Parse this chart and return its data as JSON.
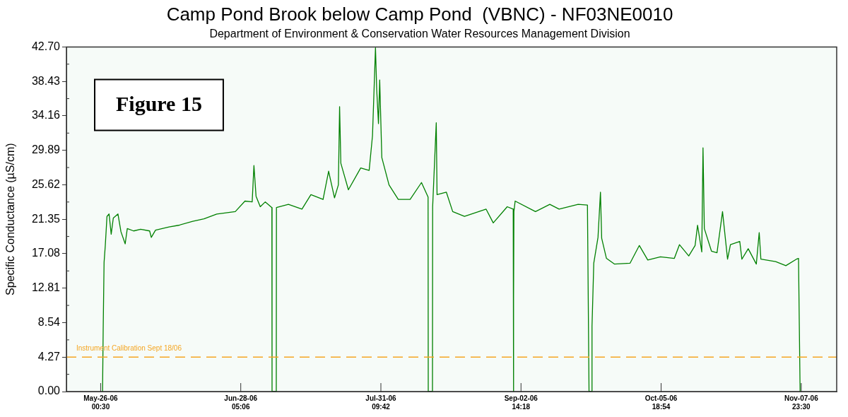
{
  "chart_data": {
    "type": "line",
    "title": "Camp Pond Brook below Camp Pond  (VBNC) - NF03NE0010",
    "subtitle": "Department of Environment & Conservation Water Resources Management Division",
    "ylabel": "Specific Conductance (µS/cm)",
    "annotations": [
      "Figure 15"
    ],
    "xlim": [
      "2006-05-17T22:00",
      "2006-11-16T09:00"
    ],
    "xticks": [
      {
        "value": "2006-05-26T00:30",
        "label": "May-26-06\n00:30"
      },
      {
        "value": "2006-06-28T05:06",
        "label": "Jun-28-06\n05:06"
      },
      {
        "value": "2006-07-31T09:42",
        "label": "Jul-31-06\n09:42"
      },
      {
        "value": "2006-09-02T14:18",
        "label": "Sep-02-06\n14:18"
      },
      {
        "value": "2006-10-05T18:54",
        "label": "Oct-05-06\n18:54"
      },
      {
        "value": "2006-11-07T23:30",
        "label": "Nov-07-06\n23:30"
      }
    ],
    "ylim": [
      0,
      42.7
    ],
    "yticks": [
      {
        "value": 0,
        "label": "0.00"
      },
      {
        "value": 4.27,
        "label": "4.27"
      },
      {
        "value": 8.54,
        "label": "8.54"
      },
      {
        "value": 12.81,
        "label": "12.81"
      },
      {
        "value": 17.08,
        "label": "17.08"
      },
      {
        "value": 21.35,
        "label": "21.35"
      },
      {
        "value": 25.62,
        "label": "25.62"
      },
      {
        "value": 29.89,
        "label": "29.89"
      },
      {
        "value": 34.16,
        "label": "34.16"
      },
      {
        "value": 38.43,
        "label": "38.43"
      },
      {
        "value": 42.7,
        "label": "42.70"
      }
    ],
    "grid": false,
    "legend": false,
    "marker": "none",
    "line_style": "solid",
    "ref_lines": [
      {
        "axis": "y",
        "value": 4.27,
        "label": "Instrument Calibration Sept 18/06",
        "color": "#f5a623",
        "line_style": "dashed"
      }
    ],
    "series": [
      {
        "color": "#008000",
        "x": [
          "2006-05-26T11:20",
          "2006-05-26T15:00",
          "2006-05-26T20:00",
          "2006-05-27T03:00",
          "2006-05-27T12:30",
          "2006-05-28T00:30",
          "2006-05-28T12:30",
          "2006-05-29T00:30",
          "2006-05-30T03:00",
          "2006-05-30T20:00",
          "2006-05-31T20:00",
          "2006-06-01T08:00",
          "2006-06-02T20:00",
          "2006-06-04T12:00",
          "2006-06-06T15:00",
          "2006-06-07T00:30",
          "2006-06-08T00:30",
          "2006-06-11T05:00",
          "2006-06-13T12:00",
          "2006-06-16T20:00",
          "2006-06-19T12:00",
          "2006-06-22T12:30",
          "2006-06-26T22:00",
          "2006-06-29T05:00",
          "2006-06-30T22:00",
          "2006-07-01T08:00",
          "2006-07-01T20:00",
          "2006-07-02T20:00",
          "2006-07-04T00:30",
          "2006-07-05T14:00",
          "2006-07-05T15:00",
          "2006-07-06T15:00",
          "2006-07-06T16:00",
          "2006-07-09T12:00",
          "2006-07-12T17:00",
          "2006-07-14T20:00",
          "2006-07-17T17:00",
          "2006-07-19T00:30",
          "2006-07-20T10:00",
          "2006-07-21T08:00",
          "2006-07-21T15:00",
          "2006-07-21T22:00",
          "2006-07-23T17:00",
          "2006-07-26T15:00",
          "2006-07-28T15:00",
          "2006-07-29T10:00",
          "2006-07-30T03:00",
          "2006-07-30T10:00",
          "2006-07-30T20:00",
          "2006-07-31T03:00",
          "2006-07-31T15:00",
          "2006-08-02T08:00",
          "2006-08-04T12:30",
          "2006-08-07T08:00",
          "2006-08-10T00:30",
          "2006-08-11T14:00",
          "2006-08-11T15:00",
          "2006-08-12T15:00",
          "2006-08-12T16:00",
          "2006-08-13T12:30",
          "2006-08-13T17:00",
          "2006-08-15T22:00",
          "2006-08-17T10:00",
          "2006-08-20T05:00",
          "2006-08-25T08:00",
          "2006-08-27T00:30",
          "2006-08-30T08:00",
          "2006-08-31T18:00",
          "2006-08-31T19:00",
          "2006-08-31T21:00",
          "2006-08-31T22:00",
          "2006-09-01T05:00",
          "2006-09-06T00:30",
          "2006-09-09T10:00",
          "2006-09-11T15:00",
          "2006-09-16T03:00",
          "2006-09-18T08:00",
          "2006-09-18T17:00",
          "2006-09-19T09:00",
          "2006-09-19T10:00",
          "2006-09-19T20:00",
          "2006-09-20T20:00",
          "2006-09-21T10:00",
          "2006-09-21T17:00",
          "2006-09-22T20:00",
          "2006-09-24T17:00",
          "2006-09-28T10:00",
          "2006-09-30T15:00",
          "2006-10-02T15:00",
          "2006-10-05T15:00",
          "2006-10-08T22:00",
          "2006-10-10T03:00",
          "2006-10-12T08:00",
          "2006-10-13T20:00",
          "2006-10-14T10:00",
          "2006-10-15T10:00",
          "2006-10-15T17:00",
          "2006-10-16T00:30",
          "2006-10-17T17:00",
          "2006-10-19T00:30",
          "2006-10-20T08:00",
          "2006-10-21T12:30",
          "2006-10-22T05:00",
          "2006-10-24T10:00",
          "2006-10-24T22:00",
          "2006-10-26T10:00",
          "2006-10-28T08:00",
          "2006-10-29T00:30",
          "2006-10-29T10:00",
          "2006-11-01T22:00",
          "2006-11-04T08:00",
          "2006-11-06T20:00",
          "2006-11-07T08:00",
          "2006-11-07T12:30",
          "2006-11-07T17:00"
        ],
        "values": [
          0,
          7.7,
          16.0,
          18.1,
          21.7,
          22.0,
          19.5,
          21.5,
          22.0,
          19.8,
          18.3,
          20.2,
          19.9,
          20.1,
          19.9,
          19.1,
          20.0,
          20.4,
          20.6,
          21.1,
          21.4,
          22.0,
          22.3,
          23.6,
          23.5,
          28.0,
          24.2,
          22.9,
          23.5,
          22.8,
          0,
          0,
          22.8,
          23.2,
          22.6,
          24.4,
          23.8,
          27.3,
          24.0,
          25.6,
          35.3,
          28.3,
          25.0,
          27.7,
          27.4,
          31.7,
          42.6,
          37.4,
          33.2,
          38.6,
          29.0,
          25.6,
          23.8,
          23.8,
          25.9,
          24.1,
          0,
          0,
          22.9,
          33.3,
          24.4,
          24.7,
          22.3,
          21.7,
          22.6,
          20.9,
          22.9,
          22.6,
          0,
          11.4,
          22.3,
          23.6,
          22.3,
          23.2,
          22.6,
          23.2,
          23.1,
          0,
          0,
          8.1,
          15.9,
          19.1,
          24.7,
          19.0,
          16.5,
          15.8,
          15.9,
          18.1,
          16.3,
          16.7,
          16.5,
          18.2,
          16.8,
          18.1,
          20.6,
          17.3,
          30.2,
          20.2,
          17.4,
          17.2,
          22.3,
          16.4,
          18.2,
          18.6,
          16.4,
          17.7,
          15.8,
          19.7,
          16.4,
          16.1,
          15.6,
          16.4,
          16.5,
          8.2,
          0
        ]
      }
    ]
  }
}
